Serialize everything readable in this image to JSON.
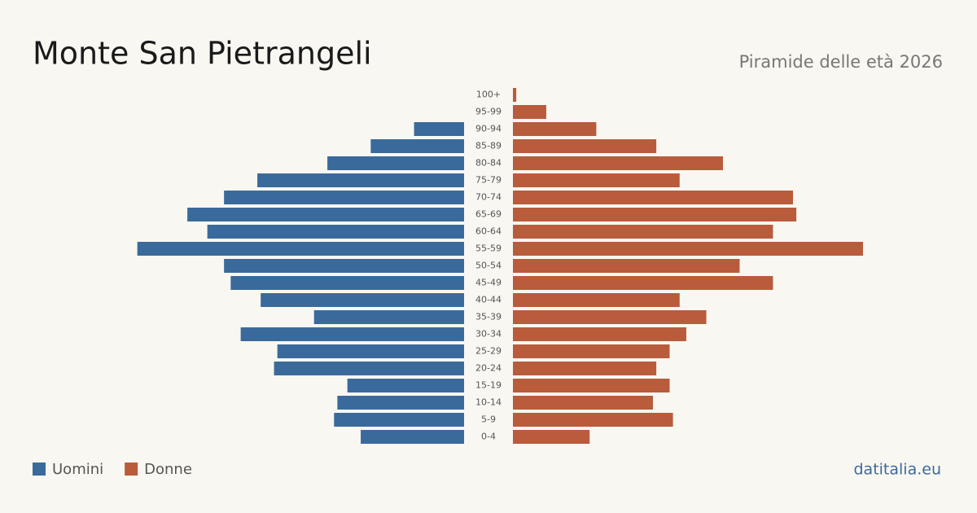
{
  "chart_data": {
    "type": "pyramid",
    "title": "Monte San Pietrangeli",
    "subtitle": "Piramide delle età 2026",
    "source": "datitalia.eu",
    "categories": [
      "100+",
      "95-99",
      "90-94",
      "85-89",
      "80-84",
      "75-79",
      "70-74",
      "65-69",
      "60-64",
      "55-59",
      "50-54",
      "45-49",
      "40-44",
      "35-39",
      "30-34",
      "25-29",
      "20-24",
      "15-19",
      "10-14",
      "5-9",
      "0-4"
    ],
    "series": [
      {
        "name": "Uomini",
        "color": "#3a6a9b",
        "values": [
          0,
          0,
          15,
          28,
          41,
          62,
          72,
          83,
          77,
          98,
          72,
          70,
          61,
          45,
          67,
          56,
          57,
          35,
          38,
          39,
          31
        ]
      },
      {
        "name": "Donne",
        "color": "#b85c3c",
        "values": [
          1,
          10,
          25,
          43,
          63,
          50,
          84,
          85,
          78,
          105,
          68,
          78,
          50,
          58,
          52,
          47,
          43,
          47,
          42,
          48,
          23
        ]
      }
    ]
  }
}
